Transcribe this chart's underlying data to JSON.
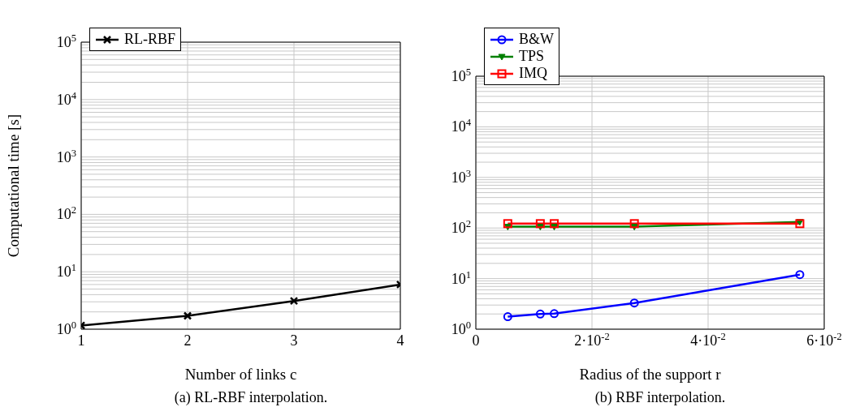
{
  "chart_data": [
    {
      "type": "line",
      "title": "(a) RL-RBF interpolation.",
      "xlabel": "Number of links c",
      "ylabel": "Computational time [s]",
      "x": [
        1,
        2,
        3,
        4
      ],
      "series": [
        {
          "name": "RL-RBF",
          "color": "#000000",
          "marker": "cross",
          "values": [
            1.16,
            1.71,
            3.1,
            6.0
          ]
        }
      ],
      "xlim": [
        1,
        4
      ],
      "xticks": [
        1,
        2,
        3,
        4
      ],
      "ylim": [
        1,
        100000
      ],
      "log": "y",
      "yticks": [
        {
          "value": 1,
          "label": "10$^{0}$"
        },
        {
          "value": 2,
          "label": null
        },
        {
          "value": 3,
          "label": null
        },
        {
          "value": 4,
          "label": null
        },
        {
          "value": 5,
          "label": null
        },
        {
          "value": 6,
          "label": null
        },
        {
          "value": 7,
          "label": null
        },
        {
          "value": 8,
          "label": null
        },
        {
          "value": 9,
          "label": null
        },
        {
          "value": 10,
          "label": "10$^{1}$"
        },
        {
          "value": 20,
          "label": null
        },
        {
          "value": 30,
          "label": null
        },
        {
          "value": 40,
          "label": null
        },
        {
          "value": 50,
          "label": null
        },
        {
          "value": 60,
          "label": null
        },
        {
          "value": 70,
          "label": null
        },
        {
          "value": 80,
          "label": null
        },
        {
          "value": 90,
          "label": null
        },
        {
          "value": 100,
          "label": "10$^{2}$"
        },
        {
          "value": 200,
          "label": null
        },
        {
          "value": 300,
          "label": null
        },
        {
          "value": 400,
          "label": null
        },
        {
          "value": 500,
          "label": null
        },
        {
          "value": 600,
          "label": null
        },
        {
          "value": 700,
          "label": null
        },
        {
          "value": 800,
          "label": null
        },
        {
          "value": 900,
          "label": null
        },
        {
          "value": 1000,
          "label": "10$^{3}$"
        },
        {
          "value": 2000,
          "label": null
        },
        {
          "value": 3000,
          "label": null
        },
        {
          "value": 4000,
          "label": null
        },
        {
          "value": 5000,
          "label": null
        },
        {
          "value": 6000,
          "label": null
        },
        {
          "value": 7000,
          "label": null
        },
        {
          "value": 8000,
          "label": null
        },
        {
          "value": 9000,
          "label": null
        },
        {
          "value": 10000,
          "label": "10$^{4}$"
        },
        {
          "value": 20000,
          "label": null
        },
        {
          "value": 30000,
          "label": null
        },
        {
          "value": 40000,
          "label": null
        },
        {
          "value": 50000,
          "label": null
        },
        {
          "value": 60000,
          "label": null
        },
        {
          "value": 70000,
          "label": null
        },
        {
          "value": 80000,
          "label": null
        },
        {
          "value": 90000,
          "label": null
        },
        {
          "value": 100000,
          "label": "10$^{5}$"
        }
      ],
      "grid": true,
      "legend": "top left",
      "line_style": "solid"
    },
    {
      "type": "line",
      "title": "(b) RBF interpolation.",
      "xlabel": "Radius of the support r",
      "x": [
        0.0055,
        0.0111,
        0.0135,
        0.0273,
        0.0558
      ],
      "series": [
        {
          "name": "B&W",
          "color": "#0000ff",
          "marker": "circle",
          "values": [
            1.77,
            1.99,
            2.03,
            3.3,
            12.0
          ]
        },
        {
          "name": "TPS",
          "color": "#008000",
          "marker": "triangle",
          "values": [
            106,
            106,
            106,
            106,
            132
          ]
        },
        {
          "name": "IMQ",
          "color": "#ff0000",
          "marker": "square",
          "values": [
            122,
            122,
            122,
            122,
            122
          ]
        }
      ],
      "xlim": [
        0,
        0.06
      ],
      "xticks": [
        0,
        {
          "value": 0.02,
          "label": "2·10$^{-2}$"
        },
        {
          "value": 0.04,
          "label": "4·10$^{-2}$"
        },
        {
          "value": 0.06,
          "label": "6·10$^{-2}$"
        }
      ],
      "ylim": [
        1,
        100000
      ],
      "log": "y",
      "yticks": [
        {
          "value": 1,
          "label": "10$^{0}$"
        },
        {
          "value": 2,
          "label": null
        },
        {
          "value": 3,
          "label": null
        },
        {
          "value": 4,
          "label": null
        },
        {
          "value": 5,
          "label": null
        },
        {
          "value": 6,
          "label": null
        },
        {
          "value": 7,
          "label": null
        },
        {
          "value": 8,
          "label": null
        },
        {
          "value": 9,
          "label": null
        },
        {
          "value": 10,
          "label": "10$^{1}$"
        },
        {
          "value": 20,
          "label": null
        },
        {
          "value": 30,
          "label": null
        },
        {
          "value": 40,
          "label": null
        },
        {
          "value": 50,
          "label": null
        },
        {
          "value": 60,
          "label": null
        },
        {
          "value": 70,
          "label": null
        },
        {
          "value": 80,
          "label": null
        },
        {
          "value": 90,
          "label": null
        },
        {
          "value": 100,
          "label": "10$^{2}$"
        },
        {
          "value": 200,
          "label": null
        },
        {
          "value": 300,
          "label": null
        },
        {
          "value": 400,
          "label": null
        },
        {
          "value": 500,
          "label": null
        },
        {
          "value": 600,
          "label": null
        },
        {
          "value": 700,
          "label": null
        },
        {
          "value": 800,
          "label": null
        },
        {
          "value": 900,
          "label": null
        },
        {
          "value": 1000,
          "label": "10$^{3}$"
        },
        {
          "value": 2000,
          "label": null
        },
        {
          "value": 3000,
          "label": null
        },
        {
          "value": 4000,
          "label": null
        },
        {
          "value": 5000,
          "label": null
        },
        {
          "value": 6000,
          "label": null
        },
        {
          "value": 7000,
          "label": null
        },
        {
          "value": 8000,
          "label": null
        },
        {
          "value": 9000,
          "label": null
        },
        {
          "value": 10000,
          "label": "10$^{4}$"
        },
        {
          "value": 20000,
          "label": null
        },
        {
          "value": 30000,
          "label": null
        },
        {
          "value": 40000,
          "label": null
        },
        {
          "value": 50000,
          "label": null
        },
        {
          "value": 60000,
          "label": null
        },
        {
          "value": 70000,
          "label": null
        },
        {
          "value": 80000,
          "label": null
        },
        {
          "value": 90000,
          "label": null
        },
        {
          "value": 100000,
          "label": "10$^{5}$"
        }
      ],
      "grid": true,
      "legend": "top left",
      "line_style": "solid"
    }
  ]
}
